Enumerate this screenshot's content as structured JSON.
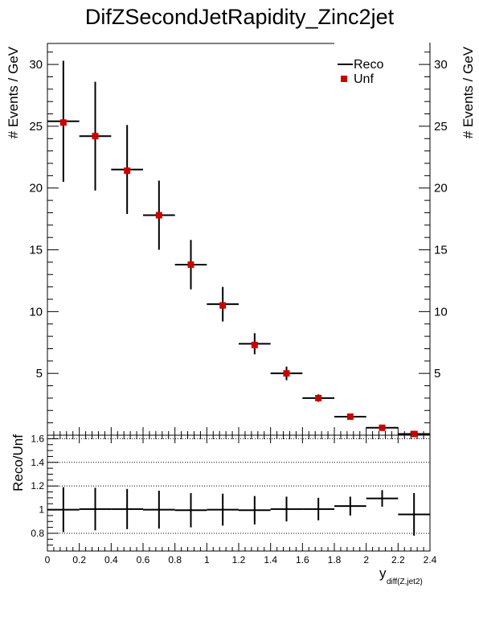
{
  "chart_data": [
    {
      "type": "scatter",
      "title": "DifZSecondJetRapidity_Zinc2jet",
      "ylabel": "# Events / GeV",
      "ylabel_right": "# Events / GeV",
      "xlim": [
        0,
        2.4
      ],
      "ylim": [
        0,
        31.7
      ],
      "y_ticks": [
        5,
        10,
        15,
        20,
        25,
        30
      ],
      "y_tick_labels": [
        "5",
        "10",
        "15",
        "20",
        "25",
        "30"
      ],
      "grid": false,
      "legend_position": "top-right",
      "legend": [
        {
          "label": "Reco",
          "marker": "line",
          "color": "#000000"
        },
        {
          "label": "Unf",
          "marker": "square",
          "color": "#cc0000"
        }
      ],
      "x": [
        0.1,
        0.3,
        0.5,
        0.7,
        0.9,
        1.1,
        1.3,
        1.5,
        1.7,
        1.9,
        2.1,
        2.3
      ],
      "x_bin_half_width": 0.1,
      "series": [
        {
          "name": "Reco",
          "values": [
            25.4,
            24.2,
            21.5,
            17.8,
            13.8,
            10.6,
            7.4,
            5.0,
            3.0,
            1.5,
            0.6,
            0.1
          ],
          "errors": [
            4.9,
            4.4,
            3.6,
            2.8,
            2.0,
            1.4,
            0.85,
            0.55,
            0.3,
            0.18,
            0.1,
            0.05
          ]
        },
        {
          "name": "Unf",
          "values": [
            25.3,
            24.2,
            21.4,
            17.8,
            13.8,
            10.5,
            7.3,
            5.0,
            3.0,
            1.5,
            0.6,
            0.1
          ]
        }
      ]
    },
    {
      "type": "scatter",
      "ylabel": "Reco/Unf",
      "xlabel": "y",
      "xlabel_subscript": "diff(Z,jet2)",
      "xlim": [
        0,
        2.4
      ],
      "ylim": [
        0.65,
        1.63
      ],
      "x_ticks": [
        0,
        0.2,
        0.4,
        0.6,
        0.8,
        1,
        1.2,
        1.4,
        1.6,
        1.8,
        2,
        2.2,
        2.4
      ],
      "x_tick_labels": [
        "0",
        "0.2",
        "0.4",
        "0.6",
        "0.8",
        "1",
        "1.2",
        "1.4",
        "1.6",
        "1.8",
        "2",
        "2.2",
        "2.4"
      ],
      "y_ticks": [
        0.8,
        1,
        1.2,
        1.4,
        1.6
      ],
      "y_tick_labels": [
        "0.8",
        "1",
        "1.2",
        "1.4",
        "1.6"
      ],
      "gridlines_y": [
        0.8,
        1.2,
        1.4,
        1.6
      ],
      "x": [
        0.1,
        0.3,
        0.5,
        0.7,
        0.9,
        1.1,
        1.3,
        1.5,
        1.7,
        1.9,
        2.1,
        2.3
      ],
      "x_bin_half_width": 0.1,
      "series": [
        {
          "name": "Reco/Unf",
          "values": [
            1.0,
            1.005,
            1.005,
            1.0,
            0.995,
            1.0,
            0.995,
            1.005,
            1.005,
            1.03,
            1.095,
            0.96
          ],
          "errors": [
            0.19,
            0.18,
            0.17,
            0.16,
            0.145,
            0.135,
            0.12,
            0.105,
            0.095,
            0.08,
            0.07,
            0.18
          ]
        }
      ]
    }
  ]
}
